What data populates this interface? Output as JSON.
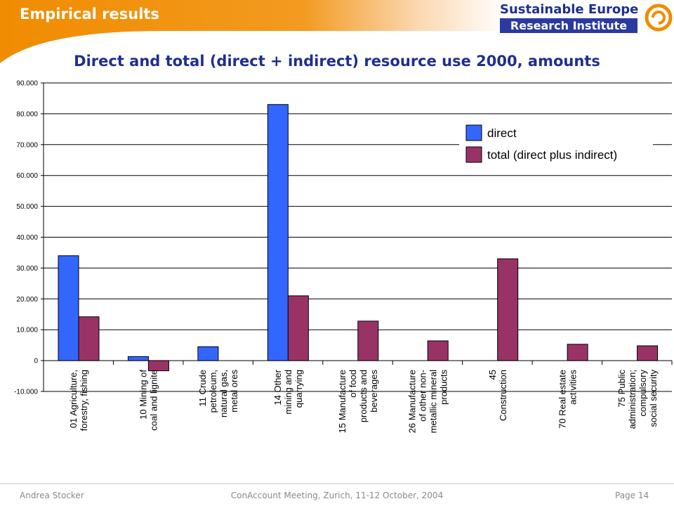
{
  "header": {
    "section_title": "Empirical results",
    "logo_line1": "Sustainable Europe",
    "logo_line2": "Research Institute"
  },
  "slide_title": "Direct and total (direct + indirect) resource use 2000, amounts",
  "colors": {
    "header_orange": "#f0900a",
    "title_blue": "#1f2f8f",
    "direct": "#3366ff",
    "total": "#993366"
  },
  "chart_data": {
    "type": "bar",
    "title": "",
    "xlabel": "",
    "ylabel": "",
    "ylim": [
      -10000,
      90000
    ],
    "yticks": [
      90000,
      80000,
      70000,
      60000,
      50000,
      40000,
      30000,
      20000,
      10000,
      0,
      -10000
    ],
    "ytick_labels": [
      "90.000",
      "80.000",
      "70.000",
      "60.000",
      "50.000",
      "40.000",
      "30.000",
      "20.000",
      "10.000",
      "0",
      "-10.000"
    ],
    "grid": true,
    "legend_placement": "top-right",
    "categories": [
      [
        "01 Agriculture,",
        "forestry, fishing"
      ],
      [
        "10 Mining of",
        "coal and lignite"
      ],
      [
        "11 Crude",
        "petroleum,",
        "natural gas,",
        "metal ores"
      ],
      [
        "14 Other",
        "mining and",
        "quarrying"
      ],
      [
        "15 Manufacture",
        "of food",
        "products and",
        "beverages"
      ],
      [
        "26 Manufacture",
        "of other non-",
        "metallic mineral",
        "products"
      ],
      [
        "45",
        "Construction"
      ],
      [
        "70 Real estate",
        "activities"
      ],
      [
        "75 Public",
        "administration;",
        "compulsory",
        "social security"
      ]
    ],
    "series": [
      {
        "name": "direct",
        "values": [
          34000,
          1300,
          4500,
          83000,
          0,
          0,
          0,
          0,
          0
        ]
      },
      {
        "name": "total (direct plus indirect)",
        "values": [
          14200,
          -3300,
          0,
          21000,
          12800,
          6400,
          33000,
          5300,
          4800
        ]
      }
    ]
  },
  "footer": {
    "author": "Andrea Stocker",
    "event": "ConAccount Meeting, Zurich, 11-12 October, 2004",
    "page": "Page 14"
  }
}
